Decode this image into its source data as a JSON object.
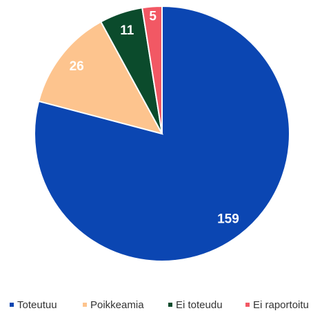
{
  "chart_data": {
    "type": "pie",
    "categories": [
      "Toteutuu",
      "Poikkeamia",
      "Ei toteudu",
      "Ei raportoitu"
    ],
    "values": [
      159,
      26,
      11,
      5
    ],
    "colors": [
      "#0b46b2",
      "#fdc48e",
      "#0b4b2c",
      "#f25864"
    ],
    "legend": "bottom"
  }
}
